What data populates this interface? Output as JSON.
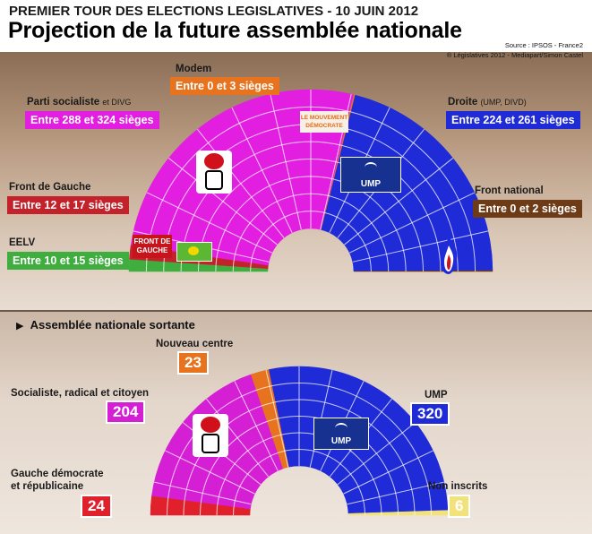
{
  "header": {
    "kicker": "PREMIER TOUR DES ELECTIONS LEGISLATIVES - 10 JUIN 2012",
    "title": "Projection de la future assemblée nationale",
    "source_line1": "Source : IPSOS - France2",
    "source_line2": "® Législatives 2012 - Mediapart/Simon Castel"
  },
  "projection_labels": {
    "modem": {
      "name": "Modem",
      "range": "Entre 0 et 3 sièges",
      "color": "#e8731f"
    },
    "ps": {
      "name": "Parti socialiste",
      "name_suffix": "et DIVG",
      "range": "Entre 288 et 324 sièges",
      "color": "#e21fe0"
    },
    "droite": {
      "name": "Droite",
      "name_suffix": "(UMP, DIVD)",
      "range": "Entre 224 et 261 sièges",
      "color": "#1f2bd6"
    },
    "fdg": {
      "name": "Front de Gauche",
      "range": "Entre 12 et 17 sièges",
      "color": "#c4222b"
    },
    "fn": {
      "name": "Front national",
      "range": "Entre 0 et 2 sièges",
      "color": "#6e3b17"
    },
    "eelv": {
      "name": "EELV",
      "range": "Entre 10 et 15 sièges",
      "color": "#3fae3f"
    }
  },
  "emblems": {
    "ump": "UMP",
    "modem": "LE MOUVEMENT DÉMOCRATE",
    "fdg": "FRONT DE GAUCHE"
  },
  "outgoing": {
    "section_title": "Assemblée nationale sortante",
    "nouveau_centre": {
      "name": "Nouveau centre",
      "seats": "23",
      "color": "#e8731f"
    },
    "src": {
      "name": "Socialiste, radical et citoyen",
      "seats": "204",
      "color": "#d51fd5"
    },
    "ump": {
      "name": "UMP",
      "seats": "320",
      "color": "#1f2bd6"
    },
    "gdr": {
      "name_line1": "Gauche démocrate",
      "name_line2": "et républicaine",
      "seats": "24",
      "color": "#e0212b"
    },
    "ni": {
      "name": "Non inscrits",
      "seats": "6",
      "color": "#f2e27a"
    }
  },
  "chart_data": [
    {
      "type": "pie",
      "title": "Projection de la future assemblée nationale",
      "categories": [
        "EELV",
        "Front de Gauche",
        "Parti socialiste et DIVG",
        "Modem",
        "Droite (UMP, DIVD)",
        "Front national"
      ],
      "ranges": [
        [
          10,
          15
        ],
        [
          12,
          17
        ],
        [
          288,
          324
        ],
        [
          0,
          3
        ],
        [
          224,
          261
        ],
        [
          0,
          2
        ]
      ],
      "values": [
        12.5,
        14.5,
        306,
        1.5,
        242.5,
        1
      ],
      "colors": [
        "#3fae3f",
        "#c4222b",
        "#e21fe0",
        "#e8731f",
        "#1f2bd6",
        "#6e3b17"
      ]
    },
    {
      "type": "pie",
      "title": "Assemblée nationale sortante",
      "categories": [
        "Gauche démocrate et républicaine",
        "Socialiste, radical et citoyen",
        "Nouveau centre",
        "UMP",
        "Non inscrits"
      ],
      "values": [
        24,
        204,
        23,
        320,
        6
      ],
      "colors": [
        "#e0212b",
        "#d51fd5",
        "#e8731f",
        "#1f2bd6",
        "#f2e27a"
      ]
    }
  ]
}
